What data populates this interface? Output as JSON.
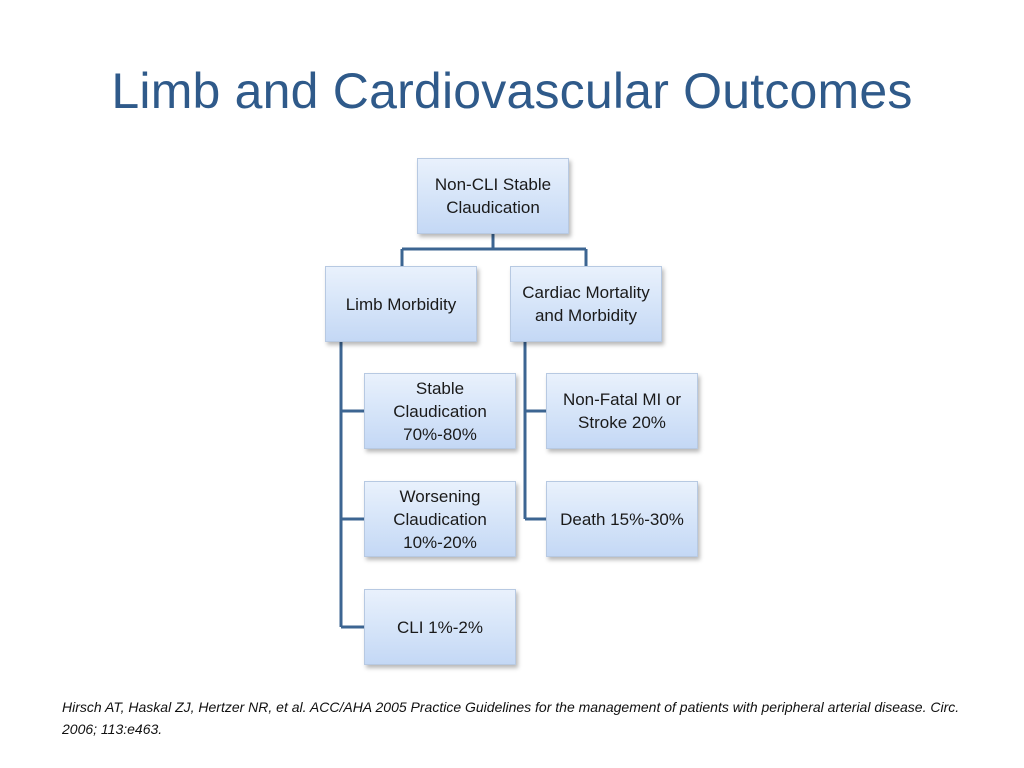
{
  "title": "Limb and Cardiovascular Outcomes",
  "diagram": {
    "root": "Non-CLI Stable Claudication",
    "branches": [
      {
        "label": "Limb Morbidity",
        "children": [
          "Stable Claudication 70%-80%",
          "Worsening Claudication 10%-20%",
          "CLI 1%-2%"
        ]
      },
      {
        "label": "Cardiac Mortality and Morbidity",
        "children": [
          "Non-Fatal MI or Stroke 20%",
          "Death 15%-30%"
        ]
      }
    ],
    "connector_color": "#3c6592"
  },
  "citation": "Hirsch AT, Haskal ZJ, Hertzer NR, et al. ACC/AHA 2005 Practice Guidelines for the management of patients with peripheral arterial disease.  Circ. 2006; 113:e463."
}
